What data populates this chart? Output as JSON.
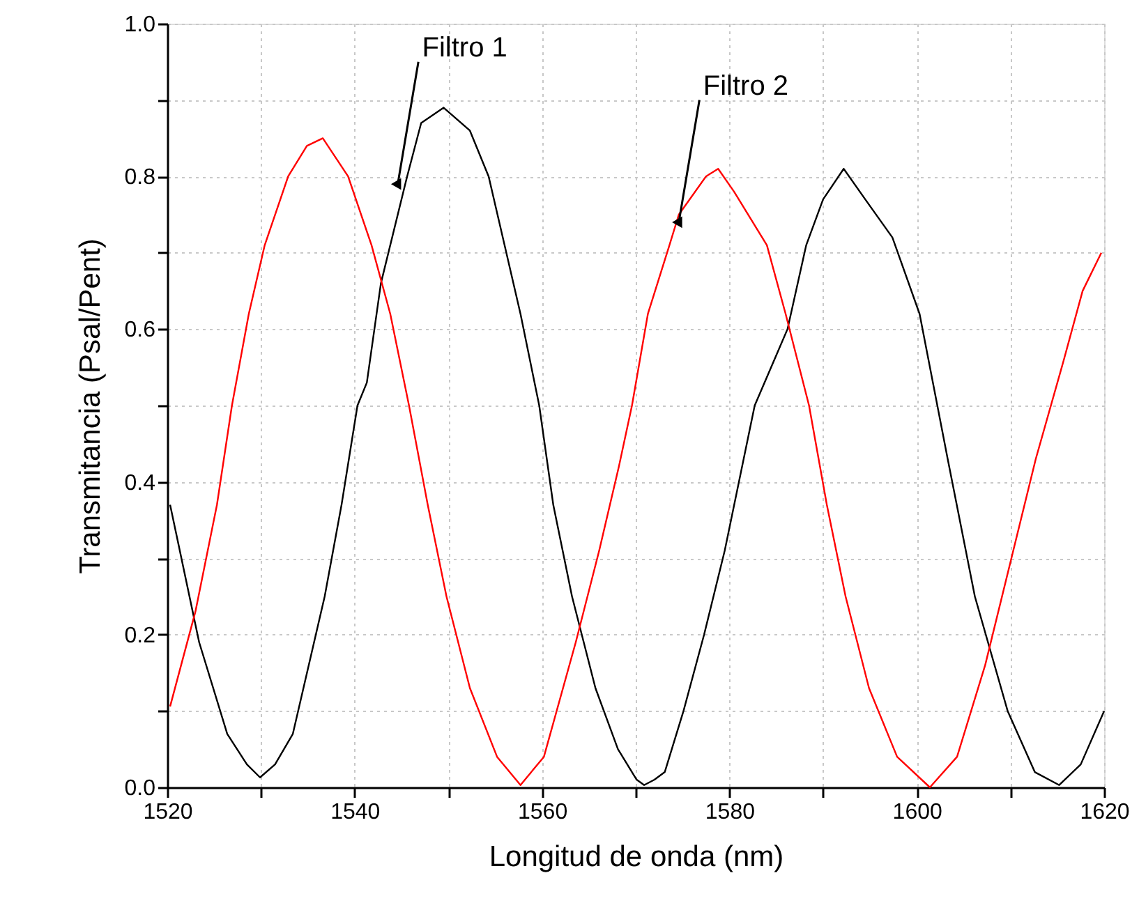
{
  "chart_data": {
    "type": "line",
    "xlabel": "Longitud de onda (nm)",
    "ylabel": "Transmitancia (Psal/Pent)",
    "xlim": [
      1520,
      1620
    ],
    "ylim": [
      0,
      1
    ],
    "xticks": [
      1520,
      {
        "value": 1530,
        "label": null
      },
      1540,
      {
        "value": 1550,
        "label": null
      },
      1560,
      {
        "value": 1570,
        "label": null
      },
      1580,
      {
        "value": 1590,
        "label": null
      },
      1600,
      {
        "value": 1610,
        "label": null
      },
      1620
    ],
    "yticks": [
      {
        "value": 0,
        "label": "0.0"
      },
      {
        "value": 0.1,
        "label": null
      },
      0.2,
      {
        "value": 0.3,
        "label": null
      },
      0.4,
      {
        "value": 0.5,
        "label": null
      },
      0.6,
      {
        "value": 0.7,
        "label": null
      },
      0.8,
      {
        "value": 0.9,
        "label": null
      },
      {
        "value": 1,
        "label": "1.0"
      }
    ],
    "grid": true,
    "marker": "none",
    "line_style": "solid",
    "series": [
      {
        "color": "#000000",
        "x": [
          1520.3,
          1523.4,
          1526.4,
          1528.5,
          1529.9,
          1531.5,
          1533.4,
          1536.8,
          1538.6,
          1540.3,
          1541.3,
          1542.8,
          1545.6,
          1547.1,
          1549.5,
          1552.3,
          1554.3,
          1556.0,
          1557.7,
          1559.7,
          1561.2,
          1563.2,
          1565.7,
          1568.1,
          1570.1,
          1570.9,
          1572.0,
          1573.1,
          1575.1,
          1577.3,
          1579.5,
          1582.7,
          1586.2,
          1588.2,
          1590.0,
          1592.2,
          1594.5,
          1597.4,
          1600.3,
          1603.3,
          1606.2,
          1609.7,
          1612.6,
          1615.2,
          1617.5,
          1620.0
        ],
        "values": [
          0.37,
          0.19,
          0.07,
          0.03,
          0.013,
          0.03,
          0.07,
          0.25,
          0.37,
          0.5,
          0.53,
          0.66,
          0.8,
          0.87,
          0.89,
          0.86,
          0.8,
          0.71,
          0.62,
          0.5,
          0.37,
          0.25,
          0.13,
          0.05,
          0.01,
          0.003,
          0.01,
          0.02,
          0.1,
          0.2,
          0.31,
          0.5,
          0.6,
          0.71,
          0.77,
          0.81,
          0.77,
          0.72,
          0.62,
          0.43,
          0.25,
          0.1,
          0.02,
          0.003,
          0.03,
          0.1
        ]
      },
      {
        "color": "#ff0000",
        "x": [
          1520.3,
          1523.0,
          1525.3,
          1526.9,
          1528.7,
          1530.4,
          1532.9,
          1534.9,
          1536.6,
          1539.3,
          1541.8,
          1543.8,
          1545.8,
          1547.8,
          1549.8,
          1552.3,
          1555.2,
          1557.7,
          1560.2,
          1563.6,
          1566.1,
          1568.2,
          1569.6,
          1571.3,
          1573.6,
          1574.6,
          1577.5,
          1578.8,
          1580.5,
          1584.0,
          1586.0,
          1588.5,
          1590.4,
          1592.4,
          1594.9,
          1597.9,
          1601.4,
          1604.3,
          1607.3,
          1610.3,
          1612.7,
          1615.7,
          1617.7,
          1619.7
        ],
        "values": [
          0.106,
          0.23,
          0.37,
          0.5,
          0.62,
          0.71,
          0.8,
          0.84,
          0.85,
          0.8,
          0.71,
          0.62,
          0.5,
          0.37,
          0.25,
          0.13,
          0.04,
          0.003,
          0.04,
          0.19,
          0.31,
          0.42,
          0.5,
          0.62,
          0.71,
          0.75,
          0.8,
          0.81,
          0.78,
          0.71,
          0.62,
          0.5,
          0.37,
          0.25,
          0.13,
          0.04,
          0.0,
          0.04,
          0.16,
          0.31,
          0.43,
          0.56,
          0.65,
          0.7
        ]
      }
    ],
    "annotations": [
      {
        "text": "Filtro 1",
        "x": 1544.6,
        "y": 0.79
      },
      {
        "text": "Filtro 2",
        "x": 1574.6,
        "y": 0.74
      }
    ]
  }
}
